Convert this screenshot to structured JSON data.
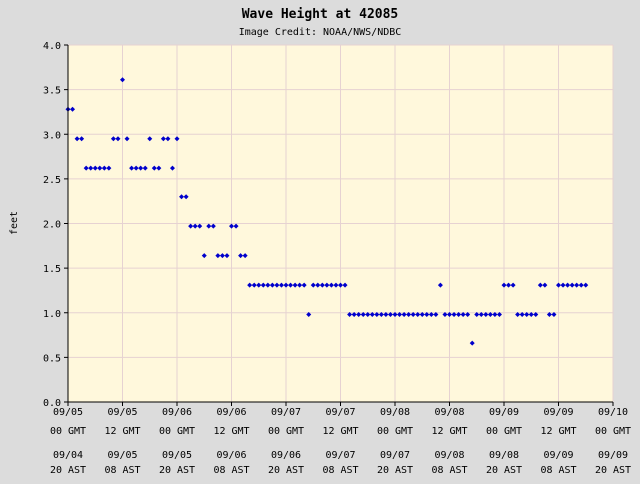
{
  "chart_data": {
    "type": "scatter",
    "title": "Wave Height at 42085",
    "subtitle": "Image Credit: NOAA/NWS/NDBC",
    "ylabel": "feet",
    "ylim": [
      0,
      4
    ],
    "yticks": [
      "0.0",
      "0.5",
      "1.0",
      "1.5",
      "2.0",
      "2.5",
      "3.0",
      "3.5",
      "4.0"
    ],
    "xlim_hours": [
      0,
      120
    ],
    "xticks_gmt": [
      {
        "date": "09/05",
        "time": "00 GMT"
      },
      {
        "date": "09/05",
        "time": "12 GMT"
      },
      {
        "date": "09/06",
        "time": "00 GMT"
      },
      {
        "date": "09/06",
        "time": "12 GMT"
      },
      {
        "date": "09/07",
        "time": "00 GMT"
      },
      {
        "date": "09/07",
        "time": "12 GMT"
      },
      {
        "date": "09/08",
        "time": "00 GMT"
      },
      {
        "date": "09/08",
        "time": "12 GMT"
      },
      {
        "date": "09/09",
        "time": "00 GMT"
      },
      {
        "date": "09/09",
        "time": "12 GMT"
      },
      {
        "date": "09/10",
        "time": "00 GMT"
      }
    ],
    "xticks_ast": [
      {
        "date": "09/04",
        "time": "20 AST"
      },
      {
        "date": "09/05",
        "time": "08 AST"
      },
      {
        "date": "09/05",
        "time": "20 AST"
      },
      {
        "date": "09/06",
        "time": "08 AST"
      },
      {
        "date": "09/06",
        "time": "20 AST"
      },
      {
        "date": "09/07",
        "time": "08 AST"
      },
      {
        "date": "09/07",
        "time": "20 AST"
      },
      {
        "date": "09/08",
        "time": "08 AST"
      },
      {
        "date": "09/08",
        "time": "20 AST"
      },
      {
        "date": "09/09",
        "time": "08 AST"
      },
      {
        "date": "09/09",
        "time": "20 AST"
      }
    ],
    "grid": true,
    "colors": {
      "plot_background": "#fff8dc",
      "page_background": "#dcdcdc",
      "grid": "#e6d2d2",
      "point": "#0000cc",
      "axis": "#000000"
    },
    "series": [
      {
        "points": [
          [
            0.0,
            3.28
          ],
          [
            1.0,
            3.28
          ],
          [
            2.0,
            2.95
          ],
          [
            3.0,
            2.95
          ],
          [
            4.0,
            2.62
          ],
          [
            5.0,
            2.62
          ],
          [
            6.0,
            2.62
          ],
          [
            7.0,
            2.62
          ],
          [
            8.0,
            2.62
          ],
          [
            9.0,
            2.62
          ],
          [
            10.0,
            2.95
          ],
          [
            11.0,
            2.95
          ],
          [
            12.0,
            3.61
          ],
          [
            13.0,
            2.95
          ],
          [
            14.0,
            2.62
          ],
          [
            15.0,
            2.62
          ],
          [
            16.0,
            2.62
          ],
          [
            17.0,
            2.62
          ],
          [
            18.0,
            2.95
          ],
          [
            19.0,
            2.62
          ],
          [
            20.0,
            2.62
          ],
          [
            21.0,
            2.95
          ],
          [
            22.0,
            2.95
          ],
          [
            23.0,
            2.62
          ],
          [
            24.0,
            2.95
          ],
          [
            25.0,
            2.3
          ],
          [
            26.0,
            2.3
          ],
          [
            27.0,
            1.97
          ],
          [
            28.0,
            1.97
          ],
          [
            29.0,
            1.97
          ],
          [
            30.0,
            1.64
          ],
          [
            31.0,
            1.97
          ],
          [
            32.0,
            1.97
          ],
          [
            33.0,
            1.64
          ],
          [
            34.0,
            1.64
          ],
          [
            35.0,
            1.64
          ],
          [
            36.0,
            1.97
          ],
          [
            37.0,
            1.97
          ],
          [
            38.0,
            1.64
          ],
          [
            39.0,
            1.64
          ],
          [
            40.0,
            1.31
          ],
          [
            41.0,
            1.31
          ],
          [
            42.0,
            1.31
          ],
          [
            43.0,
            1.31
          ],
          [
            44.0,
            1.31
          ],
          [
            45.0,
            1.31
          ],
          [
            46.0,
            1.31
          ],
          [
            47.0,
            1.31
          ],
          [
            48.0,
            1.31
          ],
          [
            49.0,
            1.31
          ],
          [
            50.0,
            1.31
          ],
          [
            51.0,
            1.31
          ],
          [
            52.0,
            1.31
          ],
          [
            53.0,
            0.98
          ],
          [
            54.0,
            1.31
          ],
          [
            55.0,
            1.31
          ],
          [
            56.0,
            1.31
          ],
          [
            57.0,
            1.31
          ],
          [
            58.0,
            1.31
          ],
          [
            59.0,
            1.31
          ],
          [
            60.0,
            1.31
          ],
          [
            61.0,
            1.31
          ],
          [
            62.0,
            0.98
          ],
          [
            63.0,
            0.98
          ],
          [
            64.0,
            0.98
          ],
          [
            65.0,
            0.98
          ],
          [
            66.0,
            0.98
          ],
          [
            67.0,
            0.98
          ],
          [
            68.0,
            0.98
          ],
          [
            69.0,
            0.98
          ],
          [
            70.0,
            0.98
          ],
          [
            71.0,
            0.98
          ],
          [
            72.0,
            0.98
          ],
          [
            73.0,
            0.98
          ],
          [
            74.0,
            0.98
          ],
          [
            75.0,
            0.98
          ],
          [
            76.0,
            0.98
          ],
          [
            77.0,
            0.98
          ],
          [
            78.0,
            0.98
          ],
          [
            79.0,
            0.98
          ],
          [
            80.0,
            0.98
          ],
          [
            81.0,
            0.98
          ],
          [
            82.0,
            1.31
          ],
          [
            83.0,
            0.98
          ],
          [
            84.0,
            0.98
          ],
          [
            85.0,
            0.98
          ],
          [
            86.0,
            0.98
          ],
          [
            87.0,
            0.98
          ],
          [
            88.0,
            0.98
          ],
          [
            89.0,
            0.66
          ],
          [
            90.0,
            0.98
          ],
          [
            91.0,
            0.98
          ],
          [
            92.0,
            0.98
          ],
          [
            93.0,
            0.98
          ],
          [
            94.0,
            0.98
          ],
          [
            95.0,
            0.98
          ],
          [
            96.0,
            1.31
          ],
          [
            97.0,
            1.31
          ],
          [
            98.0,
            1.31
          ],
          [
            99.0,
            0.98
          ],
          [
            100.0,
            0.98
          ],
          [
            101.0,
            0.98
          ],
          [
            102.0,
            0.98
          ],
          [
            103.0,
            0.98
          ],
          [
            104.0,
            1.31
          ],
          [
            105.0,
            1.31
          ],
          [
            106.0,
            0.98
          ],
          [
            107.0,
            0.98
          ],
          [
            108.0,
            1.31
          ],
          [
            109.0,
            1.31
          ],
          [
            110.0,
            1.31
          ],
          [
            111.0,
            1.31
          ],
          [
            112.0,
            1.31
          ],
          [
            113.0,
            1.31
          ],
          [
            114.0,
            1.31
          ]
        ]
      }
    ]
  }
}
